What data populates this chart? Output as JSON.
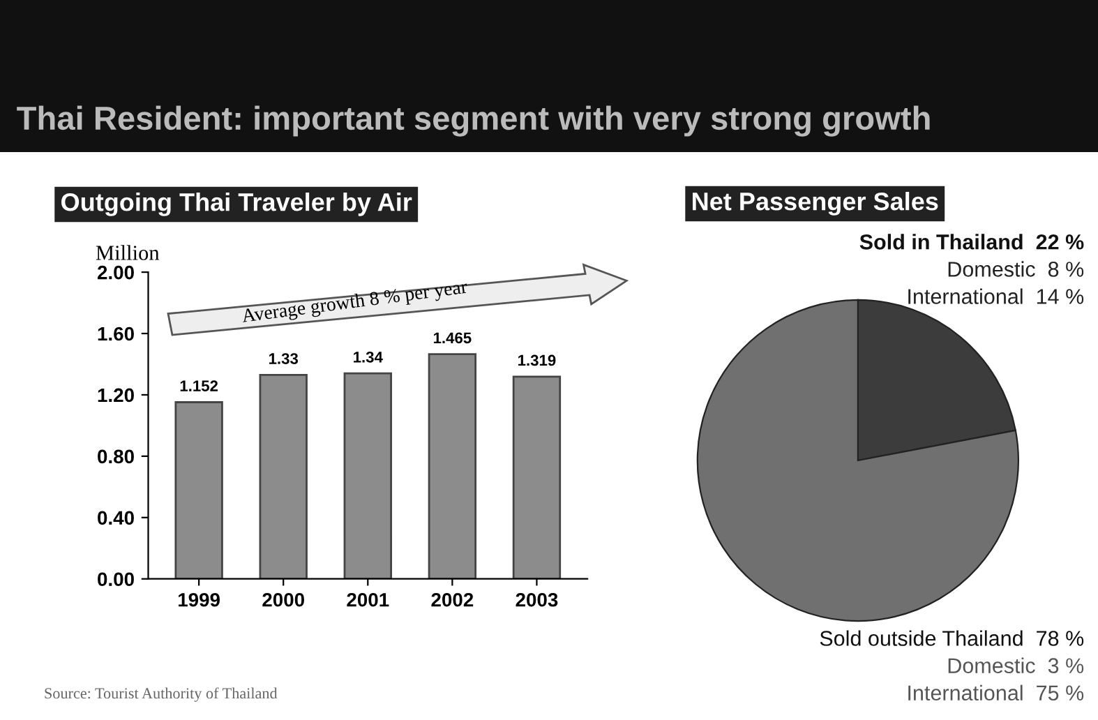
{
  "chart_data": [
    {
      "type": "bar",
      "title": "Outgoing Thai Traveler by Air",
      "ylabel": "Million",
      "categories": [
        "1999",
        "2000",
        "2001",
        "2002",
        "2003"
      ],
      "values": [
        1.152,
        1.33,
        1.34,
        1.465,
        1.319
      ],
      "color": "#8c8c8c",
      "data_labels": true,
      "ylim": [
        0,
        2
      ],
      "yticks": [
        {
          "value": 0,
          "label": "0.00"
        },
        {
          "value": 0.4,
          "label": "0.40"
        },
        {
          "value": 0.8,
          "label": "0.80"
        },
        {
          "value": 1.2,
          "label": "1.20"
        },
        {
          "value": 1.6,
          "label": "1.60"
        },
        {
          "value": 2,
          "label": "2.00"
        }
      ],
      "grid": false,
      "legend": false,
      "annotations": [
        "Thai Resident: important segment with very strong growth",
        "Average growth 8 % per year",
        "Source: Tourist Authority of Thailand"
      ]
    },
    {
      "type": "pie",
      "title": "Net Passenger Sales",
      "categories": [
        "Sold in Thailand",
        "Sold outside Thailand"
      ],
      "values": [
        22,
        78
      ],
      "colors": [
        "#3c3c3c",
        "#707070"
      ],
      "value_labels": [
        "22 %",
        "78 %"
      ],
      "legend": false,
      "annotations": [
        "Domestic  8 %",
        "International  14 %",
        "Domestic  3 %",
        "International  75 %"
      ]
    }
  ]
}
